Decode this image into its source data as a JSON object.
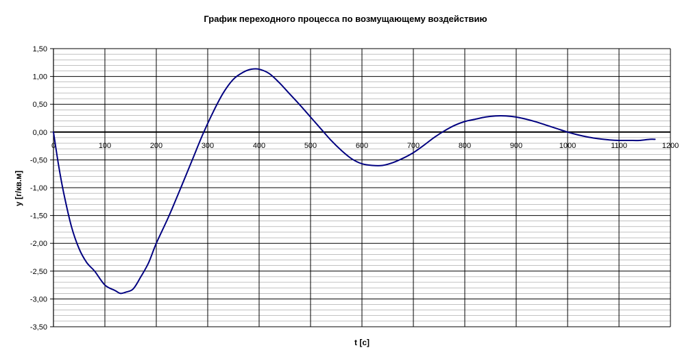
{
  "chart_data": {
    "type": "line",
    "title": "График переходного процесса по возмущающему воздействию",
    "xlabel": "t [c]",
    "ylabel": "y [г/кв.м]",
    "xlim": [
      0,
      1200
    ],
    "ylim": [
      -3.5,
      1.5
    ],
    "x_ticks": [
      0,
      100,
      200,
      300,
      400,
      500,
      600,
      700,
      800,
      900,
      1000,
      1100,
      1200
    ],
    "y_ticks": [
      1.5,
      1.0,
      0.5,
      0.0,
      -0.5,
      -1.0,
      -1.5,
      -2.0,
      -2.5,
      -3.0,
      -3.5
    ],
    "y_tick_labels": [
      "1,50",
      "1,00",
      "0,50",
      "0,00",
      "-0,50",
      "-1,00",
      "-1,50",
      "-2,00",
      "-2,50",
      "-3,00",
      "-3,50"
    ],
    "grid": true,
    "legend": "none",
    "colors": {
      "line": "#000080",
      "grid": "#000000",
      "axis": "#000000",
      "background": "#ffffff"
    },
    "series": [
      {
        "x": [
          0,
          10,
          20,
          35,
          50,
          65,
          80,
          100,
          120,
          130,
          140,
          155,
          170,
          185,
          200,
          225,
          250,
          270,
          290,
          310,
          330,
          350,
          370,
          385,
          400,
          420,
          440,
          460,
          480,
          500,
          520,
          540,
          560,
          580,
          600,
          620,
          640,
          660,
          680,
          700,
          720,
          740,
          760,
          780,
          800,
          820,
          840,
          860,
          880,
          900,
          920,
          940,
          960,
          980,
          1000,
          1020,
          1040,
          1060,
          1080,
          1100,
          1120,
          1140,
          1160,
          1170
        ],
        "y": [
          0.0,
          -0.6,
          -1.1,
          -1.7,
          -2.1,
          -2.35,
          -2.5,
          -2.75,
          -2.85,
          -2.9,
          -2.88,
          -2.82,
          -2.6,
          -2.35,
          -2.0,
          -1.5,
          -0.95,
          -0.5,
          -0.05,
          0.35,
          0.7,
          0.95,
          1.08,
          1.13,
          1.13,
          1.05,
          0.88,
          0.68,
          0.48,
          0.27,
          0.06,
          -0.15,
          -0.33,
          -0.48,
          -0.57,
          -0.6,
          -0.6,
          -0.55,
          -0.47,
          -0.37,
          -0.24,
          -0.1,
          0.02,
          0.12,
          0.19,
          0.23,
          0.27,
          0.29,
          0.29,
          0.27,
          0.23,
          0.18,
          0.12,
          0.06,
          0.0,
          -0.05,
          -0.09,
          -0.12,
          -0.14,
          -0.15,
          -0.15,
          -0.15,
          -0.13,
          -0.13
        ]
      }
    ]
  }
}
